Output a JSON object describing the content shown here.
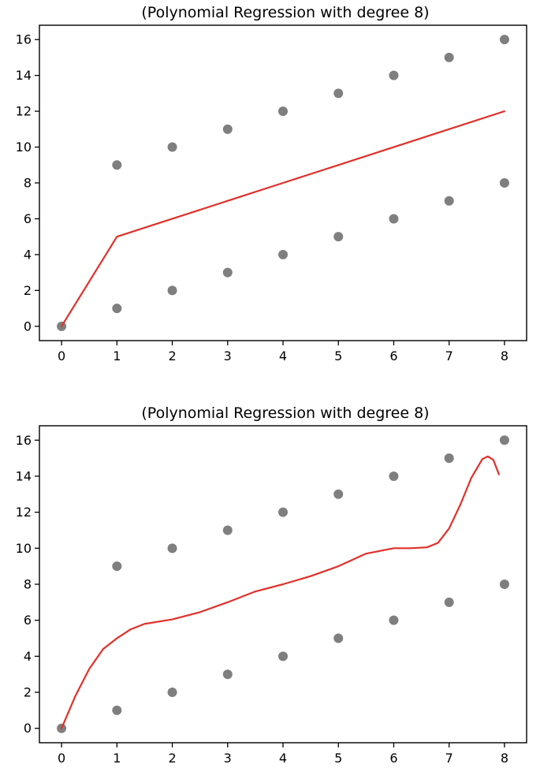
{
  "chart_data": [
    {
      "type": "scatter",
      "title": "(Polynomial Regression with degree 8)",
      "xlabel": "",
      "ylabel": "",
      "xlim": [
        -0.4,
        8.4
      ],
      "ylim": [
        -0.8,
        16.8
      ],
      "xticks": [
        0,
        1,
        2,
        3,
        4,
        5,
        6,
        7,
        8
      ],
      "yticks": [
        0,
        2,
        4,
        6,
        8,
        10,
        12,
        14,
        16
      ],
      "grid": false,
      "points": {
        "color": "#7f7f7f",
        "x": [
          0,
          1,
          2,
          3,
          4,
          5,
          6,
          7,
          8,
          1,
          2,
          3,
          4,
          5,
          6,
          7,
          8
        ],
        "y": [
          0,
          1,
          2,
          3,
          4,
          5,
          6,
          7,
          8,
          9,
          10,
          11,
          12,
          13,
          14,
          15,
          16
        ]
      },
      "fit_line": {
        "color": "#e0312b",
        "x": [
          0,
          1,
          2,
          3,
          4,
          5,
          6,
          7,
          8
        ],
        "y": [
          0,
          5,
          6,
          7,
          8,
          9,
          10,
          11,
          12
        ]
      }
    },
    {
      "type": "scatter",
      "title": "(Polynomial Regression with degree 8)",
      "xlabel": "",
      "ylabel": "",
      "xlim": [
        -0.4,
        8.4
      ],
      "ylim": [
        -0.8,
        16.8
      ],
      "xticks": [
        0,
        1,
        2,
        3,
        4,
        5,
        6,
        7,
        8
      ],
      "yticks": [
        0,
        2,
        4,
        6,
        8,
        10,
        12,
        14,
        16
      ],
      "grid": false,
      "points": {
        "color": "#7f7f7f",
        "x": [
          0,
          1,
          2,
          3,
          4,
          5,
          6,
          7,
          8,
          1,
          2,
          3,
          4,
          5,
          6,
          7,
          8
        ],
        "y": [
          0,
          1,
          2,
          3,
          4,
          5,
          6,
          7,
          8,
          9,
          10,
          11,
          12,
          13,
          14,
          15,
          16
        ]
      },
      "fit_line": {
        "color": "#e0312b",
        "x": [
          0,
          0.25,
          0.5,
          0.75,
          1,
          1.25,
          1.5,
          2,
          2.5,
          3,
          3.5,
          4,
          4.5,
          5,
          5.5,
          6,
          6.3,
          6.6,
          6.8,
          7,
          7.2,
          7.4,
          7.6,
          7.7,
          7.8,
          7.9
        ],
        "y": [
          0,
          1.8,
          3.3,
          4.4,
          5.0,
          5.5,
          5.8,
          6.05,
          6.45,
          7.0,
          7.6,
          8.0,
          8.45,
          9.0,
          9.7,
          10.0,
          10.0,
          10.05,
          10.3,
          11.1,
          12.4,
          13.9,
          14.95,
          15.1,
          14.9,
          14.1
        ]
      }
    }
  ]
}
